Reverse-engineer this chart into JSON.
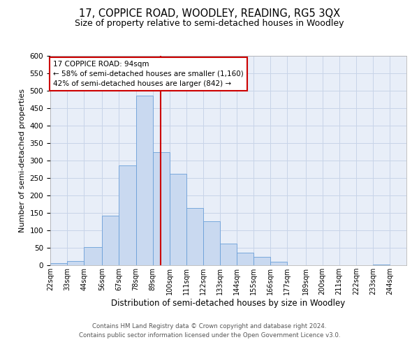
{
  "title": "17, COPPICE ROAD, WOODLEY, READING, RG5 3QX",
  "subtitle": "Size of property relative to semi-detached houses in Woodley",
  "xlabel": "Distribution of semi-detached houses by size in Woodley",
  "ylabel": "Number of semi-detached properties",
  "bin_labels": [
    "22sqm",
    "33sqm",
    "44sqm",
    "56sqm",
    "67sqm",
    "78sqm",
    "89sqm",
    "100sqm",
    "111sqm",
    "122sqm",
    "133sqm",
    "144sqm",
    "155sqm",
    "166sqm",
    "177sqm",
    "189sqm",
    "200sqm",
    "211sqm",
    "222sqm",
    "233sqm",
    "244sqm"
  ],
  "bin_edges": [
    22,
    33,
    44,
    56,
    67,
    78,
    89,
    100,
    111,
    122,
    133,
    144,
    155,
    166,
    177,
    189,
    200,
    211,
    222,
    233,
    244,
    255
  ],
  "bar_heights": [
    7,
    12,
    53,
    143,
    287,
    487,
    325,
    262,
    165,
    126,
    63,
    36,
    25,
    10,
    0,
    1,
    0,
    0,
    0,
    2,
    0
  ],
  "bar_facecolor": "#c9d9f0",
  "bar_edgecolor": "#6a9fd8",
  "grid_color": "#c8d4e8",
  "bg_color": "#e8eef8",
  "property_line_x": 94,
  "property_line_color": "#cc0000",
  "annotation_line1": "17 COPPICE ROAD: 94sqm",
  "annotation_line2": "← 58% of semi-detached houses are smaller (1,160)",
  "annotation_line3": "42% of semi-detached houses are larger (842) →",
  "annotation_box_color": "#cc0000",
  "ylim": [
    0,
    600
  ],
  "yticks": [
    0,
    50,
    100,
    150,
    200,
    250,
    300,
    350,
    400,
    450,
    500,
    550,
    600
  ],
  "footer_line1": "Contains HM Land Registry data © Crown copyright and database right 2024.",
  "footer_line2": "Contains public sector information licensed under the Open Government Licence v3.0.",
  "title_fontsize": 10.5,
  "subtitle_fontsize": 9,
  "xlabel_fontsize": 8.5,
  "ylabel_fontsize": 8
}
